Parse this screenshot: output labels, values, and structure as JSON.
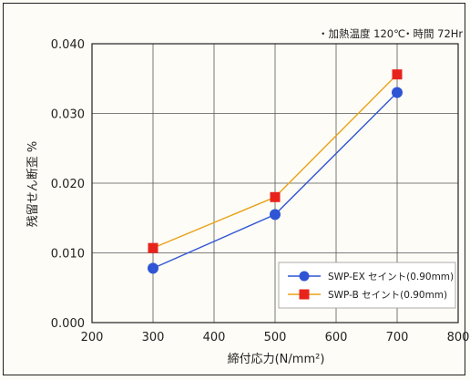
{
  "chart_data": {
    "type": "line",
    "conditions": [
      "・加熱温度 120℃",
      "・時間 72Hr"
    ],
    "xlabel": "締付応力",
    "xlabel_unit": "(N/mm²)",
    "ylabel": "残留せん断歪 %",
    "xlim": [
      200,
      800
    ],
    "ylim": [
      0,
      0.04
    ],
    "x_ticks": [
      200,
      300,
      400,
      500,
      600,
      700,
      800
    ],
    "y_ticks": [
      "0.000",
      "0.010",
      "0.020",
      "0.030",
      "0.040"
    ],
    "grid": true,
    "legend_position": "bottom-right",
    "series": [
      {
        "name": "SWP-EX セイント(0.90mm)",
        "color": "#2f55d4",
        "marker": "circle",
        "x": [
          300,
          500,
          700
        ],
        "y": [
          0.0078,
          0.0155,
          0.033
        ]
      },
      {
        "name": "SWP-B セイント(0.90mm)",
        "color": "#e8231c",
        "line_color": "#e8a317",
        "marker": "square",
        "x": [
          300,
          500,
          700
        ],
        "y": [
          0.0107,
          0.018,
          0.0356
        ]
      }
    ]
  }
}
